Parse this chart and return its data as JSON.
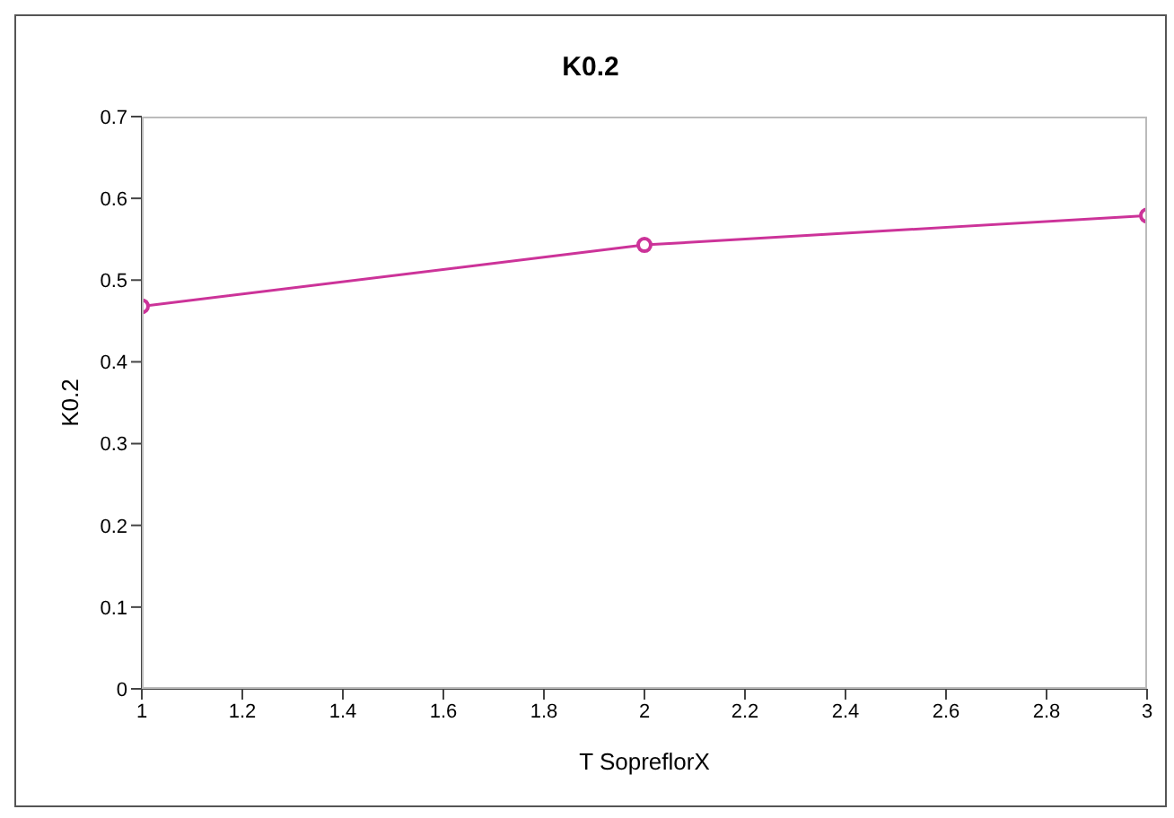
{
  "chart_data": {
    "type": "line",
    "title": "K0.2",
    "xlabel": "T SopreflorX",
    "ylabel": "K0.2",
    "x": [
      1,
      2,
      3
    ],
    "series": [
      {
        "color": "#cc3399",
        "values": [
          0.468,
          0.543,
          0.579
        ]
      }
    ],
    "xlim": [
      1,
      3
    ],
    "xticks": [
      1,
      1.2,
      1.4,
      1.6,
      1.8,
      2,
      2.2,
      2.4,
      2.6,
      2.8,
      3
    ],
    "ylim": [
      0,
      0.7
    ],
    "yticks": [
      0,
      0.1,
      0.2,
      0.3,
      0.4,
      0.5,
      0.6,
      0.7
    ],
    "grid": false,
    "legend": false,
    "marker": "circle",
    "line_style": "solid"
  }
}
